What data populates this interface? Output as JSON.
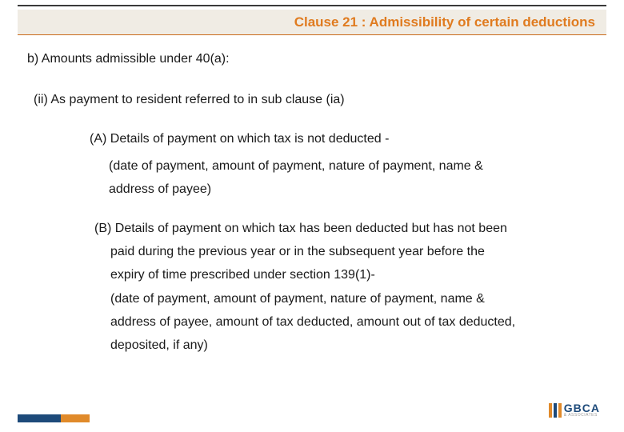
{
  "title": "Clause 21 : Admissibility of certain deductions",
  "body": {
    "line_b": "b)  Amounts admissible under 40(a):",
    "line_ii": "(ii) As payment to resident referred to in sub clause (ia)",
    "line_A": "(A) Details of payment on which tax is not deducted -",
    "line_A_sub1": "(date of payment, amount of payment, nature of payment, name &",
    "line_A_sub2": "address of payee)",
    "line_B1": "(B) Details of payment on which tax has been deducted but has not been",
    "line_B2": "paid during the previous year or in the subsequent year before the",
    "line_B3": "expiry of time prescribed under section 139(1)-",
    "line_B_sub1": "(date of payment, amount of payment, nature of payment, name &",
    "line_B_sub2": "address of payee, amount of tax deducted, amount out of tax deducted,",
    "line_B_sub3": "deposited, if any)"
  },
  "logo": {
    "main": "GBCA",
    "sub": "& ASSOCIATES"
  },
  "colors": {
    "title_color": "#e07b1f",
    "title_bg": "#f0ece4",
    "title_border": "#c96a1a",
    "text_color": "#1a1a1a",
    "stripe_blue": "#1d4a7a",
    "stripe_orange": "#e08a2a",
    "top_line": "#3a3a3a"
  }
}
